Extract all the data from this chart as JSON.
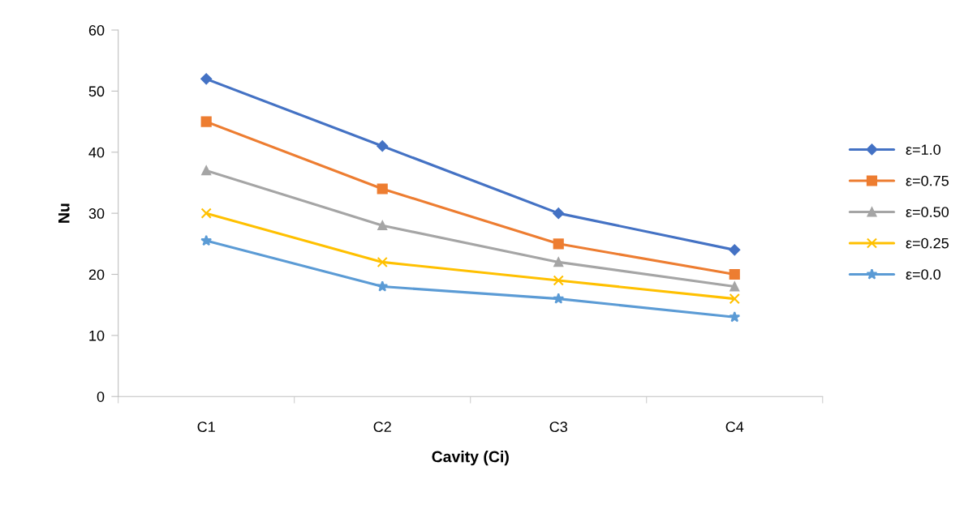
{
  "chart_data": {
    "type": "line",
    "xlabel": "Cavity (Ci)",
    "ylabel": "Nu",
    "categories": [
      "C1",
      "C2",
      "C3",
      "C4"
    ],
    "ylim": [
      0,
      60
    ],
    "yticks": [
      0,
      10,
      20,
      30,
      40,
      50,
      60
    ],
    "grid": false,
    "legend": "right",
    "series": [
      {
        "name": "ε=1.0",
        "color": "#4472c4",
        "marker": "diamond",
        "values": [
          52,
          41,
          30,
          24
        ]
      },
      {
        "name": "ε=0.75",
        "color": "#ed7d31",
        "marker": "square",
        "values": [
          45,
          34,
          25,
          20
        ]
      },
      {
        "name": "ε=0.50",
        "color": "#a5a5a5",
        "marker": "triangle",
        "values": [
          37,
          28,
          22,
          18
        ]
      },
      {
        "name": "ε=0.25",
        "color": "#ffc000",
        "marker": "cross",
        "values": [
          30,
          22,
          19,
          16
        ]
      },
      {
        "name": "ε=0.0",
        "color": "#5b9bd5",
        "marker": "star",
        "values": [
          25.5,
          18,
          16,
          13
        ]
      }
    ]
  }
}
